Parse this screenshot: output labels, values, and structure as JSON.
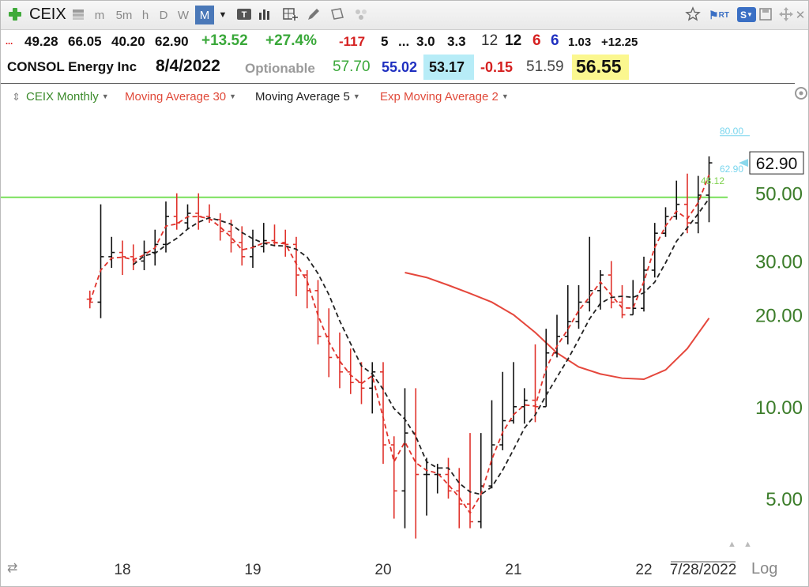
{
  "toolbar": {
    "symbol": "CEIX",
    "periods": [
      "m",
      "5m",
      "h",
      "D",
      "W",
      "M"
    ],
    "active_period": "M",
    "right_badges": {
      "rt": "RT",
      "s": "S"
    }
  },
  "quote_row1": {
    "ellipsis": "...",
    "open": "49.28",
    "high": "66.05",
    "low": "40.20",
    "close": "62.90",
    "change": "+13.52",
    "change_pct": "+27.4%",
    "v1": "-117",
    "v2": "5",
    "v3": "...",
    "v4": "3.0",
    "v5": "3.3",
    "v6": "12",
    "v7": "12",
    "v8": "6",
    "v9": "6",
    "v10": "1.03",
    "v11": "+12.25"
  },
  "quote_row2": {
    "company": "CONSOL Energy Inc",
    "date": "8/4/2022",
    "optionable": "Optionable",
    "v1": "57.70",
    "v2": "55.02",
    "v3": "53.17",
    "v4": "-0.15",
    "v5": "51.59",
    "v6": "56.55"
  },
  "legend": {
    "symbol_label": "CEIX Monthly",
    "ma30": "Moving Average 30",
    "ma5": "Moving Average 5",
    "ema2": "Exp Moving Average 2"
  },
  "chart_data": {
    "type": "line",
    "scale": "log",
    "ylim": [
      3.5,
      90
    ],
    "y_ticks": [
      "5.00",
      "10.00",
      "20.00",
      "30.00",
      "50.00"
    ],
    "x_ticks": [
      "18",
      "19",
      "20",
      "21",
      "22"
    ],
    "last_date_label": "7/28/2022",
    "last_price_label": "62.90",
    "price_level_label": "80.00",
    "ma_tag_cyan": "62.90",
    "ma_tag_green": "48.12",
    "horizontal_line": 48.5,
    "log_button": "Log",
    "colors": {
      "bars": "#111111",
      "ema2": "#e0322b",
      "ma30": "#e5473c",
      "ma5": "#222222",
      "hline": "#78e05a",
      "axis": "#3c7d2a"
    },
    "bars": {
      "x": [
        "2017-10",
        "2017-11",
        "2017-12",
        "2018-01",
        "2018-02",
        "2018-03",
        "2018-04",
        "2018-05",
        "2018-06",
        "2018-07",
        "2018-08",
        "2018-09",
        "2018-10",
        "2018-11",
        "2018-12",
        "2019-01",
        "2019-02",
        "2019-03",
        "2019-04",
        "2019-05",
        "2019-06",
        "2019-07",
        "2019-08",
        "2019-09",
        "2019-10",
        "2019-11",
        "2019-12",
        "2020-01",
        "2020-02",
        "2020-03",
        "2020-04",
        "2020-05",
        "2020-06",
        "2020-07",
        "2020-08",
        "2020-09",
        "2020-10",
        "2020-11",
        "2020-12",
        "2021-01",
        "2021-02",
        "2021-03",
        "2021-04",
        "2021-05",
        "2021-06",
        "2021-07",
        "2021-08",
        "2021-09",
        "2021-10",
        "2021-11",
        "2021-12",
        "2022-01",
        "2022-02",
        "2022-03",
        "2022-04",
        "2022-05",
        "2022-06",
        "2022-07"
      ],
      "open": [
        22.5,
        22.0,
        31.0,
        32.0,
        31.0,
        30.0,
        32.0,
        34.0,
        42.0,
        40.0,
        43.0,
        42.0,
        41.0,
        37.5,
        34.5,
        31.0,
        33.5,
        35.0,
        34.5,
        34.0,
        27.0,
        24.0,
        17.0,
        14.5,
        13.0,
        12.0,
        11.5,
        13.0,
        7.5,
        5.3,
        8.2,
        6.0,
        6.0,
        6.0,
        5.3,
        4.8,
        4.2,
        5.5,
        7.5,
        9.0,
        10.0,
        10.5,
        10.0,
        15.0,
        17.0,
        19.0,
        22.0,
        24.0,
        27.0,
        22.0,
        20.0,
        21.0,
        28.0,
        37.0,
        42.0,
        46.0,
        40.0,
        49.3
      ],
      "high": [
        24.0,
        46.0,
        36.0,
        35.0,
        34.0,
        35.0,
        38.0,
        47.0,
        50.0,
        46.0,
        50.0,
        46.0,
        43.0,
        41.0,
        39.0,
        38.0,
        40.0,
        39.5,
        38.0,
        36.0,
        28.0,
        26.0,
        21.0,
        17.5,
        15.5,
        14.0,
        14.0,
        14.0,
        8.0,
        11.5,
        11.5,
        6.8,
        6.5,
        6.8,
        6.3,
        8.2,
        8.2,
        10.5,
        13.0,
        14.0,
        11.5,
        16.0,
        18.0,
        20.0,
        25.0,
        25.0,
        36.0,
        28.0,
        30.0,
        25.0,
        26.0,
        31.0,
        40.0,
        45.0,
        55.0,
        58.0,
        57.0,
        66.05
      ],
      "low": [
        21.0,
        19.5,
        28.5,
        27.0,
        28.0,
        28.0,
        29.0,
        32.0,
        38.0,
        38.0,
        38.0,
        40.0,
        35.0,
        32.0,
        29.0,
        28.5,
        32.0,
        33.5,
        31.0,
        23.0,
        21.0,
        16.0,
        12.5,
        11.5,
        11.0,
        10.2,
        9.5,
        6.5,
        4.3,
        4.0,
        3.7,
        4.4,
        5.2,
        5.0,
        4.0,
        4.0,
        4.0,
        5.4,
        7.2,
        8.8,
        8.8,
        8.9,
        10.0,
        14.5,
        16.0,
        18.0,
        20.5,
        20.8,
        21.0,
        19.5,
        20.0,
        20.5,
        26.5,
        36.0,
        41.0,
        37.0,
        37.0,
        40.2
      ],
      "close": [
        22.0,
        31.0,
        32.0,
        31.0,
        30.0,
        32.0,
        34.0,
        42.0,
        40.0,
        43.0,
        42.0,
        41.0,
        37.5,
        34.5,
        31.0,
        33.5,
        35.0,
        34.5,
        34.0,
        27.0,
        24.0,
        17.0,
        14.5,
        13.0,
        12.0,
        11.5,
        13.0,
        7.5,
        5.3,
        8.2,
        6.0,
        6.0,
        6.0,
        5.3,
        4.8,
        4.2,
        5.5,
        7.5,
        9.0,
        10.0,
        10.5,
        10.0,
        15.0,
        17.0,
        19.0,
        22.0,
        24.0,
        27.0,
        22.0,
        20.0,
        21.0,
        28.0,
        37.0,
        42.0,
        46.0,
        40.0,
        49.3,
        62.9
      ]
    },
    "ma30": {
      "x": [
        "2020-03",
        "2020-05",
        "2020-07",
        "2020-09",
        "2020-11",
        "2021-01",
        "2021-03",
        "2021-05",
        "2021-07",
        "2021-09",
        "2021-11",
        "2022-01",
        "2022-03",
        "2022-05",
        "2022-07"
      ],
      "values": [
        27.5,
        26.5,
        25.0,
        23.5,
        22.0,
        20.0,
        17.5,
        15.0,
        13.5,
        12.8,
        12.4,
        12.3,
        13.2,
        15.5,
        19.5
      ]
    },
    "ma5_note": "computed from closes",
    "ema2_note": "computed from closes"
  }
}
